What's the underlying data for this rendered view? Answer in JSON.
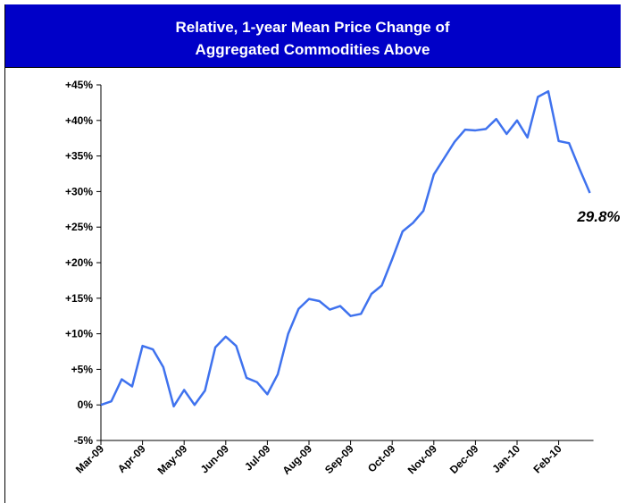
{
  "chart_data": {
    "type": "line",
    "title": [
      "Relative, 1-year Mean Price Change of",
      "Aggregated Commodities Above"
    ],
    "categories": [
      "Mar-09",
      null,
      null,
      null,
      "Apr-09",
      null,
      null,
      null,
      "May-09",
      null,
      null,
      null,
      "Jun-09",
      null,
      null,
      null,
      "Jul-09",
      null,
      null,
      null,
      "Aug-09",
      null,
      null,
      null,
      "Sep-09",
      null,
      null,
      null,
      "Oct-09",
      null,
      null,
      null,
      "Nov-09",
      null,
      null,
      null,
      "Dec-09",
      null,
      null,
      null,
      "Jan-10",
      null,
      null,
      null,
      "Feb-10",
      null,
      null,
      null
    ],
    "values": [
      0,
      0.5,
      3.6,
      2.6,
      8.3,
      7.8,
      5.3,
      -0.2,
      2.1,
      0,
      2,
      8.1,
      9.6,
      8.3,
      3.8,
      3.2,
      1.5,
      4.3,
      10,
      13.5,
      14.9,
      14.6,
      13.4,
      13.9,
      12.5,
      12.8,
      15.6,
      16.8,
      20.5,
      24.4,
      25.6,
      27.3,
      32.4,
      34.7,
      37,
      38.7,
      38.6,
      38.8,
      40.2,
      38.1,
      40,
      37.6,
      43.3,
      44.1,
      37.1,
      36.8,
      33.2,
      29.8
    ],
    "annotation": "29.8%",
    "color": "#3f72ee",
    "ylim": [
      -5,
      45
    ],
    "yticks": [
      {
        "value": -5,
        "label": "-5%"
      },
      {
        "value": 0,
        "label": "0%"
      },
      {
        "value": 5,
        "label": "+5%"
      },
      {
        "value": 10,
        "label": "+10%"
      },
      {
        "value": 15,
        "label": "+15%"
      },
      {
        "value": 20,
        "label": "+20%"
      },
      {
        "value": 25,
        "label": "+25%"
      },
      {
        "value": 30,
        "label": "+30%"
      },
      {
        "value": 35,
        "label": "+35%"
      },
      {
        "value": 40,
        "label": "+40%"
      },
      {
        "value": 45,
        "label": "+45%"
      }
    ],
    "grid": false
  }
}
